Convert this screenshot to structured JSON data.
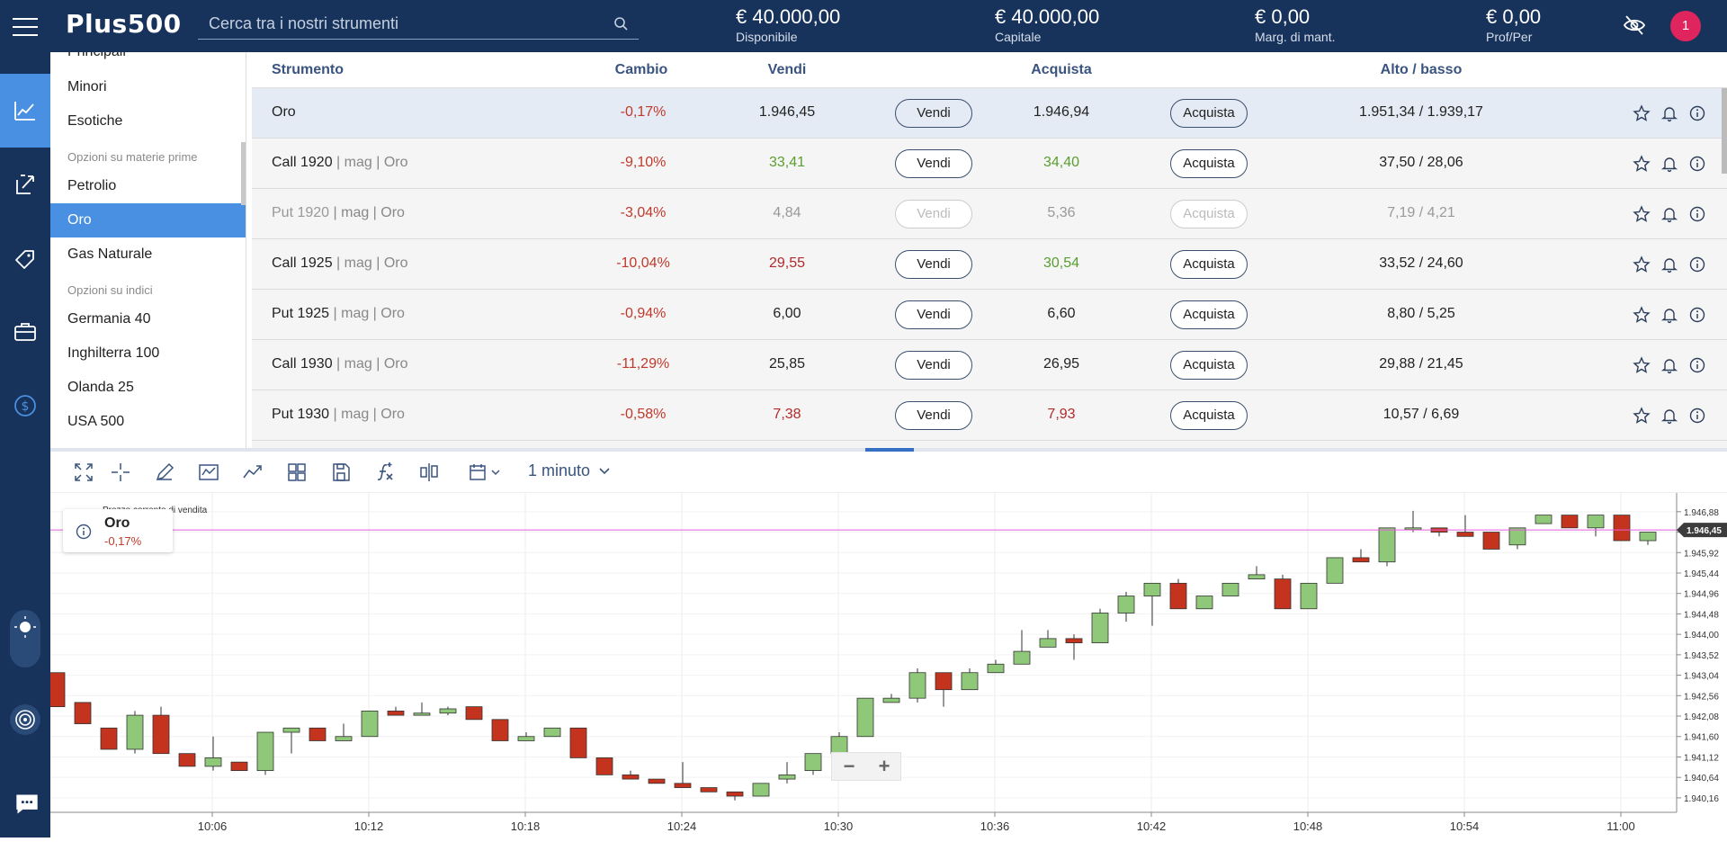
{
  "header": {
    "logo": "Plus500",
    "search_placeholder": "Cerca tra i nostri strumenti",
    "stats": [
      {
        "value": "€ 40.000,00",
        "label": "Disponibile"
      },
      {
        "value": "€ 40.000,00",
        "label": "Capitale"
      },
      {
        "value": "€ 0,00",
        "label": "Marg. di mant."
      },
      {
        "value": "€ 0,00",
        "label": "Prof/Per"
      }
    ],
    "notification_count": "1"
  },
  "sidebar": {
    "partial_top": "Principali",
    "items_top": [
      "Minori",
      "Esotiche"
    ],
    "section1": "Opzioni su materie prime",
    "commodities": [
      "Petrolio",
      "Oro",
      "Gas Naturale"
    ],
    "active": "Oro",
    "section2": "Opzioni su indici",
    "indices": [
      "Germania 40",
      "Inghilterra 100",
      "Olanda 25",
      "USA 500"
    ]
  },
  "table": {
    "headers": {
      "instrument": "Strumento",
      "change": "Cambio",
      "sell": "Vendi",
      "buy": "Acquista",
      "highlow": "Alto / basso"
    },
    "sell_btn": "Vendi",
    "buy_btn": "Acquista",
    "rows": [
      {
        "name": "Oro",
        "meta": "",
        "change": "-0,17%",
        "sell": "1.946,45",
        "buy": "1.946,94",
        "hl": "1.951,34 / 1.939,17"
      },
      {
        "name": "Call 1920",
        "meta": " | mag | Oro",
        "change": "-9,10%",
        "sell": "33,41",
        "buy": "34,40",
        "hl": "37,50 / 28,06"
      },
      {
        "name": "Put 1920",
        "meta": " | mag | Oro",
        "change": "-3,04%",
        "sell": "4,84",
        "buy": "5,36",
        "hl": "7,19 / 4,21"
      },
      {
        "name": "Call 1925",
        "meta": " | mag | Oro",
        "change": "-10,04%",
        "sell": "29,55",
        "buy": "30,54",
        "hl": "33,52 / 24,60"
      },
      {
        "name": "Put 1925",
        "meta": " | mag | Oro",
        "change": "-0,94%",
        "sell": "6,00",
        "buy": "6,60",
        "hl": "8,80 / 5,25"
      },
      {
        "name": "Call 1930",
        "meta": " | mag | Oro",
        "change": "-11,29%",
        "sell": "25,85",
        "buy": "26,95",
        "hl": "29,88 / 21,45"
      },
      {
        "name": "Put 1930",
        "meta": " | mag | Oro",
        "change": "-0,58%",
        "sell": "7,38",
        "buy": "7,93",
        "hl": "10,57 / 6,69"
      }
    ]
  },
  "chart_toolbar": {
    "interval": "1 minuto"
  },
  "chart_info": {
    "title": "Oro",
    "change": "-0,17%",
    "price_label": "Prezzo corrente di vendita"
  },
  "chart_data": {
    "type": "candlestick",
    "current_price": "1.946,45",
    "y_ticks": [
      "1.946,88",
      "1.946,40",
      "1.945,92",
      "1.945,44",
      "1.944,96",
      "1.944,48",
      "1.944,00",
      "1.943,52",
      "1.943,04",
      "1.942,56",
      "1.942,08",
      "1.941,60",
      "1.941,12",
      "1.940,64",
      "1.940,16"
    ],
    "y_tick_values": [
      1946.88,
      1946.4,
      1945.92,
      1945.44,
      1944.96,
      1944.48,
      1944.0,
      1943.52,
      1943.04,
      1942.56,
      1942.08,
      1941.6,
      1941.12,
      1940.64,
      1940.16
    ],
    "x_ticks": [
      "10:06",
      "10:12",
      "10:18",
      "10:24",
      "10:30",
      "10:36",
      "10:42",
      "10:48",
      "10:54",
      "11:00"
    ],
    "x_tick_minutes": [
      6,
      12,
      18,
      24,
      30,
      36,
      42,
      48,
      54,
      60
    ],
    "candles": [
      [
        0,
        1943.1,
        1942.3,
        1943.1,
        1942.3
      ],
      [
        1,
        1942.4,
        1941.9,
        1942.4,
        1941.9
      ],
      [
        2,
        1941.8,
        1941.3,
        1941.8,
        1941.3
      ],
      [
        3,
        1941.3,
        1942.1,
        1942.2,
        1941.2
      ],
      [
        4,
        1942.1,
        1941.2,
        1942.3,
        1941.2
      ],
      [
        5,
        1941.2,
        1940.9,
        1941.2,
        1940.9
      ],
      [
        6,
        1940.9,
        1941.1,
        1941.6,
        1940.8
      ],
      [
        7,
        1941.0,
        1940.8,
        1941.0,
        1940.8
      ],
      [
        8,
        1940.8,
        1941.7,
        1941.7,
        1940.7
      ],
      [
        9,
        1941.7,
        1941.8,
        1941.8,
        1941.2
      ],
      [
        10,
        1941.8,
        1941.5,
        1941.8,
        1941.5
      ],
      [
        11,
        1941.5,
        1941.6,
        1941.9,
        1941.5
      ],
      [
        12,
        1941.6,
        1942.2,
        1942.2,
        1941.6
      ],
      [
        13,
        1942.2,
        1942.1,
        1942.3,
        1942.1
      ],
      [
        14,
        1942.1,
        1942.15,
        1942.4,
        1942.1
      ],
      [
        15,
        1942.15,
        1942.25,
        1942.3,
        1942.1
      ],
      [
        16,
        1942.3,
        1942.0,
        1942.3,
        1942.0
      ],
      [
        17,
        1942.0,
        1941.5,
        1942.0,
        1941.5
      ],
      [
        18,
        1941.5,
        1941.6,
        1941.7,
        1941.5
      ],
      [
        19,
        1941.6,
        1941.8,
        1941.8,
        1941.6
      ],
      [
        20,
        1941.8,
        1941.1,
        1941.8,
        1941.1
      ],
      [
        21,
        1941.1,
        1940.7,
        1941.1,
        1940.7
      ],
      [
        22,
        1940.7,
        1940.6,
        1940.8,
        1940.6
      ],
      [
        23,
        1940.6,
        1940.5,
        1940.6,
        1940.5
      ],
      [
        24,
        1940.5,
        1940.4,
        1941.0,
        1940.4
      ],
      [
        25,
        1940.4,
        1940.3,
        1940.4,
        1940.3
      ],
      [
        26,
        1940.3,
        1940.2,
        1940.3,
        1940.1
      ],
      [
        27,
        1940.2,
        1940.5,
        1940.5,
        1940.2
      ],
      [
        28,
        1940.6,
        1940.7,
        1941.0,
        1940.5
      ],
      [
        29,
        1940.8,
        1941.2,
        1941.2,
        1940.7
      ],
      [
        30,
        1941.2,
        1941.6,
        1941.7,
        1941.2
      ],
      [
        31,
        1941.6,
        1942.5,
        1942.5,
        1941.6
      ],
      [
        32,
        1942.4,
        1942.5,
        1942.6,
        1942.4
      ],
      [
        33,
        1942.5,
        1943.1,
        1943.2,
        1942.4
      ],
      [
        34,
        1943.1,
        1942.7,
        1943.1,
        1942.3
      ],
      [
        35,
        1942.7,
        1943.1,
        1943.2,
        1942.7
      ],
      [
        36,
        1943.1,
        1943.3,
        1943.4,
        1943.1
      ],
      [
        37,
        1943.3,
        1943.6,
        1944.1,
        1943.3
      ],
      [
        38,
        1943.7,
        1943.9,
        1944.1,
        1943.7
      ],
      [
        39,
        1943.9,
        1943.8,
        1944.0,
        1943.4
      ],
      [
        40,
        1943.8,
        1944.5,
        1944.6,
        1943.8
      ],
      [
        41,
        1944.5,
        1944.9,
        1945.0,
        1944.3
      ],
      [
        42,
        1944.9,
        1945.2,
        1945.2,
        1944.2
      ],
      [
        43,
        1945.2,
        1944.6,
        1945.3,
        1944.6
      ],
      [
        44,
        1944.6,
        1944.9,
        1944.9,
        1944.6
      ],
      [
        45,
        1944.9,
        1945.2,
        1945.2,
        1944.9
      ],
      [
        46,
        1945.3,
        1945.4,
        1945.6,
        1945.3
      ],
      [
        47,
        1945.3,
        1944.6,
        1945.4,
        1944.6
      ],
      [
        48,
        1944.6,
        1945.2,
        1945.2,
        1944.6
      ],
      [
        49,
        1945.2,
        1945.8,
        1945.8,
        1945.2
      ],
      [
        50,
        1945.8,
        1945.7,
        1946.0,
        1945.7
      ],
      [
        51,
        1945.7,
        1946.5,
        1946.5,
        1945.6
      ],
      [
        52,
        1946.5,
        1946.5,
        1946.9,
        1946.4
      ],
      [
        53,
        1946.5,
        1946.4,
        1946.5,
        1946.3
      ],
      [
        54,
        1946.4,
        1946.3,
        1946.8,
        1946.3
      ],
      [
        55,
        1946.4,
        1946.0,
        1946.4,
        1946.0
      ],
      [
        56,
        1946.1,
        1946.5,
        1946.5,
        1946.0
      ],
      [
        57,
        1946.6,
        1946.8,
        1946.8,
        1946.6
      ],
      [
        58,
        1946.8,
        1946.5,
        1946.8,
        1946.5
      ],
      [
        59,
        1946.5,
        1946.8,
        1946.8,
        1946.3
      ],
      [
        60,
        1946.8,
        1946.2,
        1946.8,
        1946.2
      ],
      [
        61,
        1946.2,
        1946.4,
        1946.4,
        1946.1
      ]
    ]
  }
}
